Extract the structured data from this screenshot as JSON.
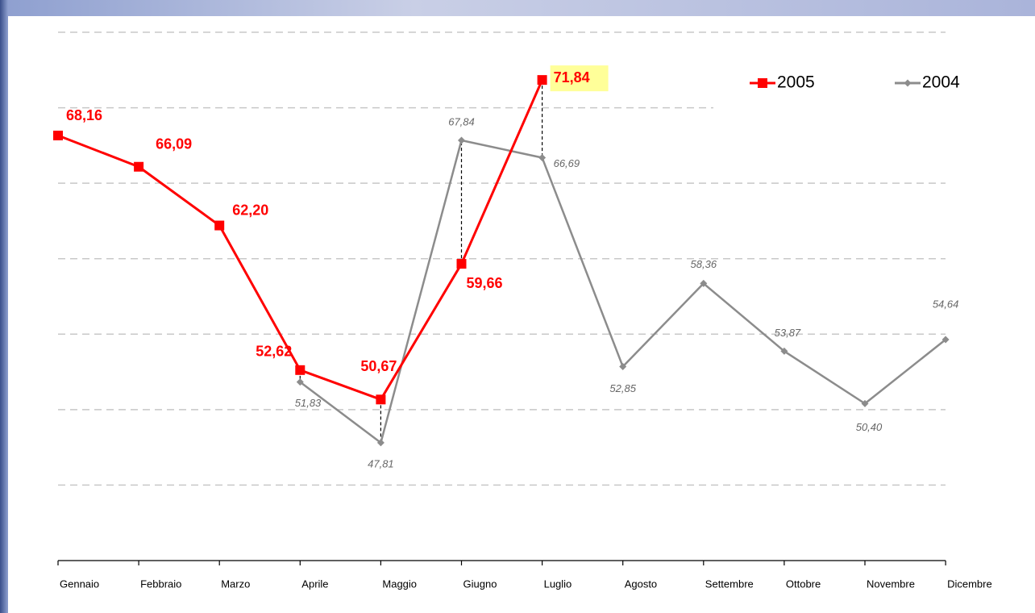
{
  "chart_data": {
    "type": "line",
    "categories": [
      "Gennaio",
      "Febbraio",
      "Marzo",
      "Aprile",
      "Maggio",
      "Giugno",
      "Luglio",
      "Agosto",
      "Settembre",
      "Ottobre",
      "Novembre",
      "Dicembre"
    ],
    "series": [
      {
        "name": "2005",
        "color": "#ff0000",
        "values": [
          68.16,
          66.09,
          62.2,
          52.62,
          50.67,
          59.66,
          71.84,
          null,
          null,
          null,
          null,
          null
        ],
        "value_labels": [
          "68,16",
          "66,09",
          "62,20",
          "52,62",
          "50,67",
          "59,66",
          "71,84",
          null,
          null,
          null,
          null,
          null
        ]
      },
      {
        "name": "2004",
        "color": "#8c8c8c",
        "values": [
          null,
          null,
          null,
          51.83,
          47.81,
          67.84,
          66.69,
          52.85,
          58.36,
          53.87,
          50.4,
          54.64
        ],
        "value_labels": [
          null,
          null,
          null,
          "51,83",
          "47,81",
          "67,84",
          "66,69",
          "52,85",
          "58,36",
          "53,87",
          "50,40",
          "54,64"
        ]
      }
    ],
    "ylim": [
      40,
      75
    ],
    "yticks": [
      45,
      50,
      55,
      60,
      65,
      70,
      75
    ],
    "grid": true,
    "legend": "upper right"
  }
}
